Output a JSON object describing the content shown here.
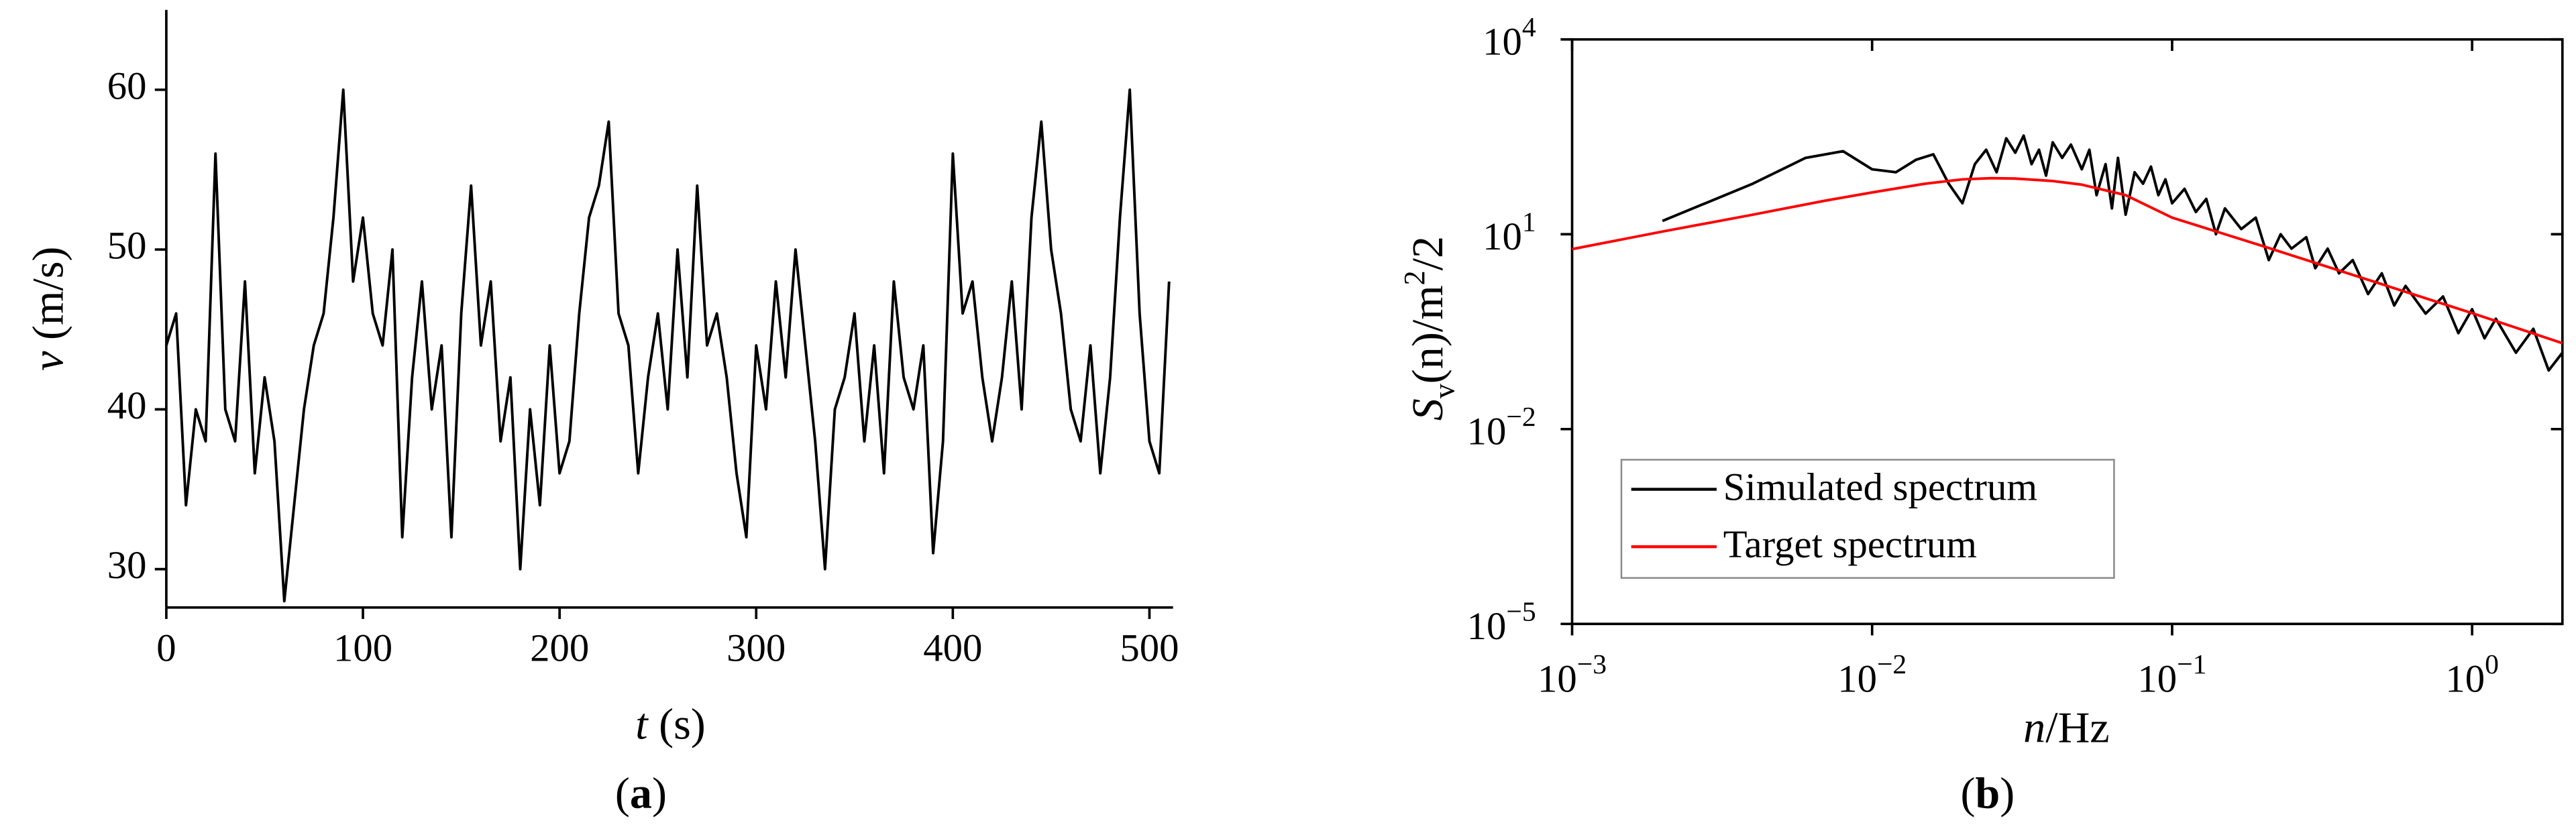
{
  "chart_data": [
    {
      "type": "line",
      "xlabel": [
        "t",
        " (s)"
      ],
      "ylabel": [
        "v",
        " (m/s)"
      ],
      "caption": [
        "(",
        "a",
        ")"
      ],
      "xlim": [
        0,
        512
      ],
      "ylim": [
        27.6,
        65
      ],
      "xticks": [
        0,
        100,
        200,
        300,
        400,
        500
      ],
      "yticks": [
        30,
        40,
        50,
        60
      ],
      "color": "#000000",
      "x": [
        0,
        5,
        10,
        15,
        20,
        25,
        30,
        35,
        40,
        45,
        50,
        55,
        60,
        65,
        70,
        75,
        80,
        85,
        90,
        95,
        100,
        105,
        110,
        115,
        120,
        125,
        130,
        135,
        140,
        145,
        150,
        155,
        160,
        165,
        170,
        175,
        180,
        185,
        190,
        195,
        200,
        205,
        210,
        215,
        220,
        225,
        230,
        235,
        240,
        245,
        250,
        255,
        260,
        265,
        270,
        275,
        280,
        285,
        290,
        295,
        300,
        305,
        310,
        315,
        320,
        325,
        330,
        335,
        340,
        345,
        350,
        355,
        360,
        365,
        370,
        375,
        380,
        385,
        390,
        395,
        400,
        405,
        410,
        415,
        420,
        425,
        430,
        435,
        440,
        445,
        450,
        455,
        460,
        465,
        470,
        475,
        480,
        485,
        490,
        495,
        500,
        505,
        510
      ],
      "values": [
        44,
        46,
        34,
        40,
        38,
        56,
        40,
        38,
        48,
        36,
        42,
        38,
        28,
        34,
        40,
        44,
        46,
        52,
        60,
        48,
        52,
        46,
        44,
        50,
        32,
        42,
        48,
        40,
        44,
        32,
        46,
        54,
        44,
        48,
        38,
        42,
        30,
        40,
        34,
        44,
        36,
        38,
        46,
        52,
        54,
        58,
        46,
        44,
        36,
        42,
        46,
        40,
        50,
        42,
        54,
        44,
        46,
        42,
        36,
        32,
        44,
        40,
        48,
        42,
        50,
        44,
        38,
        30,
        40,
        42,
        46,
        38,
        44,
        36,
        48,
        42,
        40,
        44,
        31,
        38,
        56,
        46,
        48,
        42,
        38,
        42,
        48,
        40,
        52,
        58,
        50,
        46,
        40,
        38,
        44,
        36,
        42,
        52,
        60,
        46,
        38,
        36,
        48
      ]
    },
    {
      "type": "line",
      "xscale": "log",
      "yscale": "log",
      "xlabel": [
        "n",
        "/Hz"
      ],
      "ylabel": [
        "S",
        "v",
        "(n)/m",
        "2",
        "/2"
      ],
      "caption": [
        "(",
        "b",
        ")"
      ],
      "xlim": [
        0.001,
        2
      ],
      "ylim": [
        1e-05,
        10000
      ],
      "xticks": [
        {
          "value": 0.001,
          "label": "10",
          "exp": "−3"
        },
        {
          "value": 0.01,
          "label": "10",
          "exp": "−2"
        },
        {
          "value": 0.1,
          "label": "10",
          "exp": "−1"
        },
        {
          "value": 1,
          "label": "10",
          "exp": "0"
        }
      ],
      "yticks": [
        {
          "value": 1e-05,
          "label": "10",
          "exp": "−5"
        },
        {
          "value": 0.01,
          "label": "10",
          "exp": "−2"
        },
        {
          "value": 10,
          "label": "10",
          "exp": "1"
        },
        {
          "value": 10000,
          "label": "10",
          "exp": "4"
        }
      ],
      "legend": "lower left",
      "series": [
        {
          "name": "Simulated spectrum",
          "color": "#000000",
          "x": [
            0.002,
            0.004,
            0.006,
            0.008,
            0.01,
            0.012,
            0.014,
            0.016,
            0.018,
            0.02,
            0.022,
            0.024,
            0.026,
            0.028,
            0.03,
            0.032,
            0.034,
            0.036,
            0.038,
            0.04,
            0.043,
            0.046,
            0.05,
            0.053,
            0.056,
            0.06,
            0.063,
            0.066,
            0.07,
            0.075,
            0.08,
            0.085,
            0.09,
            0.095,
            0.1,
            0.11,
            0.12,
            0.13,
            0.14,
            0.15,
            0.17,
            0.19,
            0.21,
            0.23,
            0.25,
            0.28,
            0.3,
            0.33,
            0.36,
            0.4,
            0.45,
            0.5,
            0.55,
            0.6,
            0.7,
            0.8,
            0.9,
            1.0,
            1.1,
            1.2,
            1.4,
            1.6,
            1.8,
            2.0
          ],
          "values": [
            16,
            60,
            150,
            190,
            100,
            90,
            140,
            170,
            60,
            30,
            120,
            200,
            90,
            300,
            180,
            330,
            120,
            200,
            80,
            260,
            150,
            240,
            100,
            200,
            40,
            120,
            25,
            150,
            20,
            90,
            60,
            110,
            40,
            70,
            30,
            50,
            22,
            35,
            10,
            25,
            12,
            18,
            4,
            10,
            6,
            9,
            3,
            6,
            2.5,
            4,
            1.2,
            2.5,
            0.8,
            1.6,
            0.6,
            1.1,
            0.3,
            0.7,
            0.25,
            0.5,
            0.15,
            0.35,
            0.08,
            0.15
          ]
        },
        {
          "name": "Target spectrum",
          "color": "#ff0000",
          "x": [
            0.001,
            0.002,
            0.004,
            0.007,
            0.01,
            0.015,
            0.02,
            0.025,
            0.03,
            0.04,
            0.05,
            0.07,
            0.1,
            0.2,
            0.5,
            1,
            2
          ],
          "values": [
            5.9,
            11,
            20,
            33,
            44,
            60,
            70,
            73,
            72,
            66,
            58,
            40,
            18,
            6.6,
            1.7,
            0.61,
            0.21
          ]
        }
      ]
    }
  ]
}
